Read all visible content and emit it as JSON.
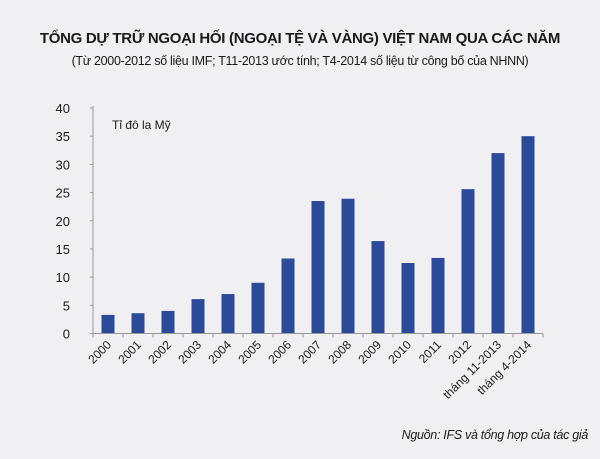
{
  "chart_data": {
    "type": "bar",
    "title": "TỔNG DỰ TRỮ NGOẠI HỐI (NGOẠI TỆ VÀ VÀNG) VIỆT NAM QUA CÁC NĂM",
    "subtitle": "(Từ 2000-2012 số liệu IMF; T11-2013 ước tính; T4-2014 số liệu từ công bố của NHNN)",
    "ylabel": "Tỉ đô la Mỹ",
    "xlabel": "",
    "categories": [
      "2000",
      "2001",
      "2002",
      "2003",
      "2004",
      "2005",
      "2006",
      "2007",
      "2008",
      "2009",
      "2010",
      "2011",
      "2012",
      "tháng 11-2013",
      "tháng 4-2014"
    ],
    "values": [
      3.3,
      3.6,
      4.0,
      6.1,
      7.0,
      9.0,
      13.3,
      23.5,
      23.9,
      16.4,
      12.5,
      13.4,
      25.6,
      32.0,
      35.0
    ],
    "ylim": [
      0,
      40
    ],
    "yticks": [
      "0",
      "5",
      "10",
      "15",
      "20",
      "25",
      "30",
      "35",
      "40"
    ],
    "grid": false,
    "legend": "none",
    "bar_color": "#2c4a9a",
    "source": "Nguồn: IFS và tổng hợp của tác giả"
  }
}
